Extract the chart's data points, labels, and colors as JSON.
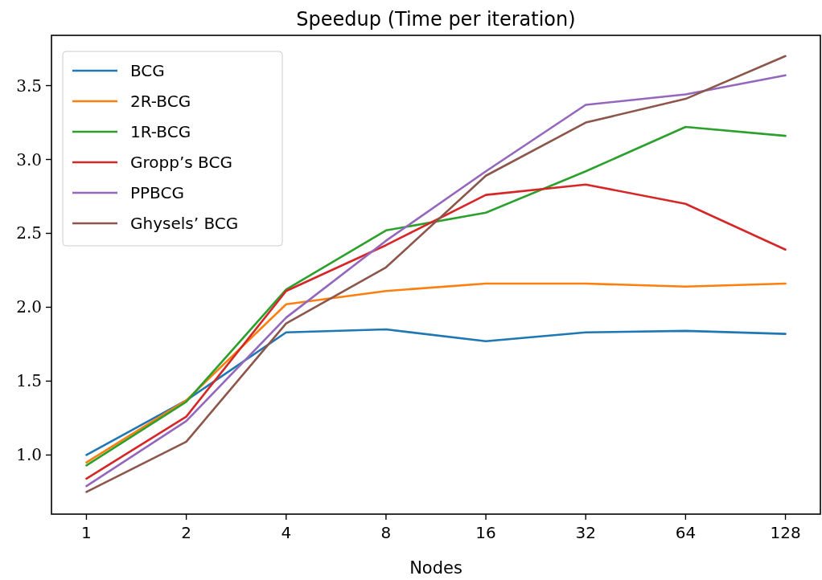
{
  "chart_data": {
    "type": "line",
    "title": "Speedup (Time per iteration)",
    "xlabel": "Nodes",
    "categories": [
      "1",
      "2",
      "4",
      "8",
      "16",
      "32",
      "64",
      "128"
    ],
    "ylim": [
      0.6,
      3.84
    ],
    "yticks": [
      {
        "value": 1,
        "label": "1.0"
      },
      {
        "value": 1.5,
        "label": "1.5"
      },
      {
        "value": 2,
        "label": "2.0"
      },
      {
        "value": 2.5,
        "label": "2.5"
      },
      {
        "value": 3,
        "label": "3.0"
      },
      {
        "value": 3.5,
        "label": "3.5"
      }
    ],
    "legend": "top left",
    "grid": false,
    "marker": "none",
    "line_style": "solid",
    "series": [
      {
        "name": "BCG",
        "color": "#1f77b4",
        "values": [
          1.0,
          1.37,
          1.83,
          1.85,
          1.77,
          1.83,
          1.84,
          1.82
        ]
      },
      {
        "name": "2R-BCG",
        "color": "#ff7f0e",
        "values": [
          0.95,
          1.37,
          2.02,
          2.11,
          2.16,
          2.16,
          2.14,
          2.16
        ]
      },
      {
        "name": "1R-BCG",
        "color": "#2ca02c",
        "values": [
          0.93,
          1.36,
          2.12,
          2.52,
          2.64,
          2.92,
          3.22,
          3.16
        ]
      },
      {
        "name": "Gropp’s BCG",
        "color": "#d62728",
        "values": [
          0.84,
          1.26,
          2.11,
          2.42,
          2.76,
          2.83,
          2.7,
          2.39
        ]
      },
      {
        "name": "PPBCG",
        "color": "#9467bd",
        "values": [
          0.79,
          1.23,
          1.93,
          2.45,
          2.92,
          3.37,
          3.44,
          3.57
        ]
      },
      {
        "name": "Ghysels’ BCG",
        "color": "#8c564b",
        "values": [
          0.75,
          1.09,
          1.89,
          2.27,
          2.89,
          3.25,
          3.41,
          3.7
        ]
      }
    ]
  }
}
